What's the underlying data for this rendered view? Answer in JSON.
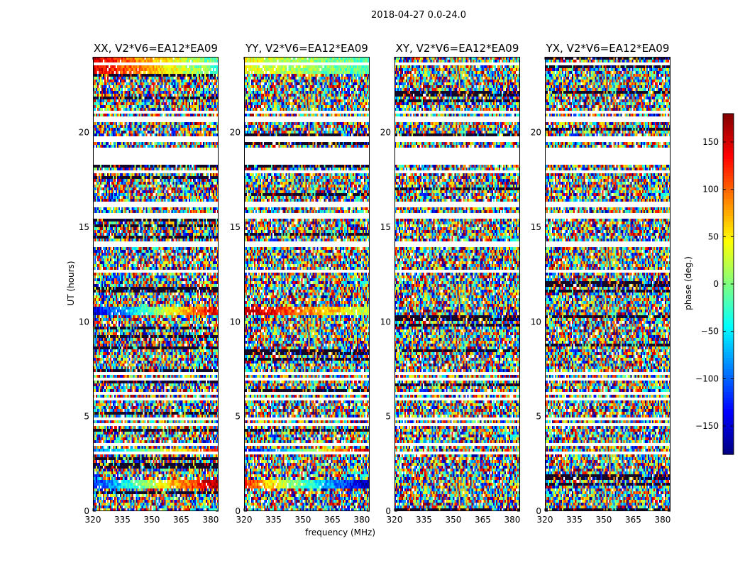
{
  "figure": {
    "suptitle": "2018-04-27 0.0-24.0",
    "xlabel": "frequency (MHz)",
    "ylabel": "UT (hours)",
    "colorbar_label": "phase (deg.)"
  },
  "chart_data": [
    {
      "type": "heatmap",
      "title": "XX, V2*V6=EA12*EA09",
      "xlim": [
        320,
        384
      ],
      "ylim": [
        0,
        24
      ],
      "xticks": [
        320,
        335,
        350,
        365,
        380
      ],
      "yticks": [
        0,
        5,
        10,
        15,
        20
      ],
      "colormap": "jet",
      "vlim": [
        -180,
        180
      ]
    },
    {
      "type": "heatmap",
      "title": "YY, V2*V6=EA12*EA09",
      "xlim": [
        320,
        384
      ],
      "ylim": [
        0,
        24
      ],
      "xticks": [
        320,
        335,
        350,
        365,
        380
      ],
      "yticks": [
        0,
        5,
        10,
        15,
        20
      ],
      "colormap": "jet",
      "vlim": [
        -180,
        180
      ]
    },
    {
      "type": "heatmap",
      "title": "XY, V2*V6=EA12*EA09",
      "xlim": [
        320,
        384
      ],
      "ylim": [
        0,
        24
      ],
      "xticks": [
        320,
        335,
        350,
        365,
        380
      ],
      "yticks": [
        0,
        5,
        10,
        15,
        20
      ],
      "colormap": "jet",
      "vlim": [
        -180,
        180
      ]
    },
    {
      "type": "heatmap",
      "title": "YX, V2*V6=EA12*EA09",
      "xlim": [
        320,
        384
      ],
      "ylim": [
        0,
        24
      ],
      "xticks": [
        320,
        335,
        350,
        365,
        380
      ],
      "yticks": [
        0,
        5,
        10,
        15,
        20
      ],
      "colormap": "jet",
      "vlim": [
        -180,
        180
      ]
    }
  ],
  "colorbar": {
    "range": [
      -180,
      180
    ],
    "ticks": [
      150,
      100,
      50,
      0,
      -50,
      -100,
      -150
    ],
    "tick_labels": [
      "150",
      "100",
      "50",
      "0",
      "−50",
      "−100",
      "−150"
    ],
    "colormap": "jet"
  },
  "blank_time_ranges_hours": [
    [
      18.3,
      19.2
    ],
    [
      19.5,
      19.8
    ],
    [
      20.5,
      20.8
    ],
    [
      21.0,
      21.2
    ],
    [
      17.8,
      18.0
    ],
    [
      16.0,
      16.3
    ],
    [
      15.5,
      15.7
    ],
    [
      14.0,
      14.2
    ],
    [
      13.3,
      13.4
    ],
    [
      12.6,
      12.8
    ],
    [
      11.5,
      11.6
    ],
    [
      7.2,
      7.4
    ],
    [
      6.9,
      7.0
    ],
    [
      6.1,
      6.3
    ],
    [
      5.9,
      6.0
    ],
    [
      4.8,
      4.9
    ],
    [
      4.5,
      4.6
    ],
    [
      3.5,
      3.6
    ],
    [
      3.0,
      3.1
    ],
    [
      1.9,
      2.0
    ],
    [
      1.6,
      1.7
    ],
    [
      1.3,
      1.4
    ],
    [
      22.0,
      22.1
    ],
    [
      23.5,
      23.7
    ],
    [
      24.0,
      24.0
    ]
  ],
  "coherent_bands": [
    {
      "panel": 0,
      "t": [
        23.1,
        24.0
      ],
      "phase_start": 150,
      "phase_end": -20
    },
    {
      "panel": 0,
      "t": [
        10.4,
        10.8
      ],
      "phase_start": -150,
      "phase_end": 150
    },
    {
      "panel": 0,
      "t": [
        3.1,
        3.3
      ],
      "phase_start": -100,
      "phase_end": 130
    },
    {
      "panel": 0,
      "t": [
        1.2,
        1.6
      ],
      "phase_start": -120,
      "phase_end": 170
    },
    {
      "panel": 1,
      "t": [
        23.1,
        24.0
      ],
      "phase_start": 40,
      "phase_end": -20
    },
    {
      "panel": 1,
      "t": [
        10.4,
        10.8
      ],
      "phase_start": 160,
      "phase_end": 20
    },
    {
      "panel": 1,
      "t": [
        3.1,
        3.3
      ],
      "phase_start": -150,
      "phase_end": 160
    },
    {
      "panel": 1,
      "t": [
        1.2,
        1.6
      ],
      "phase_start": 120,
      "phase_end": -170
    }
  ]
}
